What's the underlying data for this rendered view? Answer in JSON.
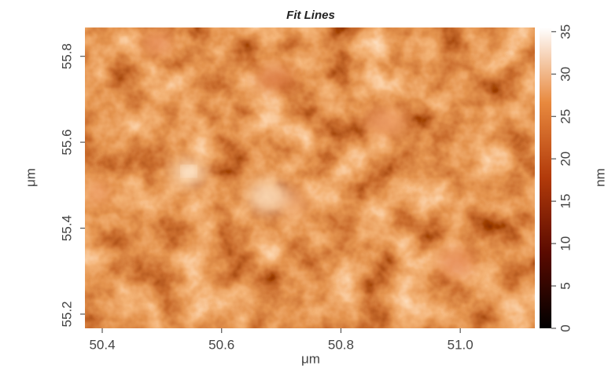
{
  "chart_data": {
    "type": "heatmap-image",
    "title": "Fit Lines",
    "x_label": "μm",
    "y_label": "μm",
    "xlim": [
      50.371,
      51.125
    ],
    "xticks": [
      50.4,
      50.6,
      50.8,
      {
        "value": 51.0,
        "label": "51.0"
      }
    ],
    "ylim": [
      55.167,
      55.867
    ],
    "yticks": [
      55.2,
      55.4,
      55.6,
      55.8
    ],
    "colorbar": {
      "label": "nm",
      "lim": [
        0,
        35.5
      ],
      "ticks": [
        0,
        5,
        10,
        15,
        20,
        25,
        30,
        35
      ],
      "colors": [
        "#000000",
        "#5a0a00",
        "#b23a0a",
        "#e8893e",
        "#ffffff"
      ]
    }
  }
}
